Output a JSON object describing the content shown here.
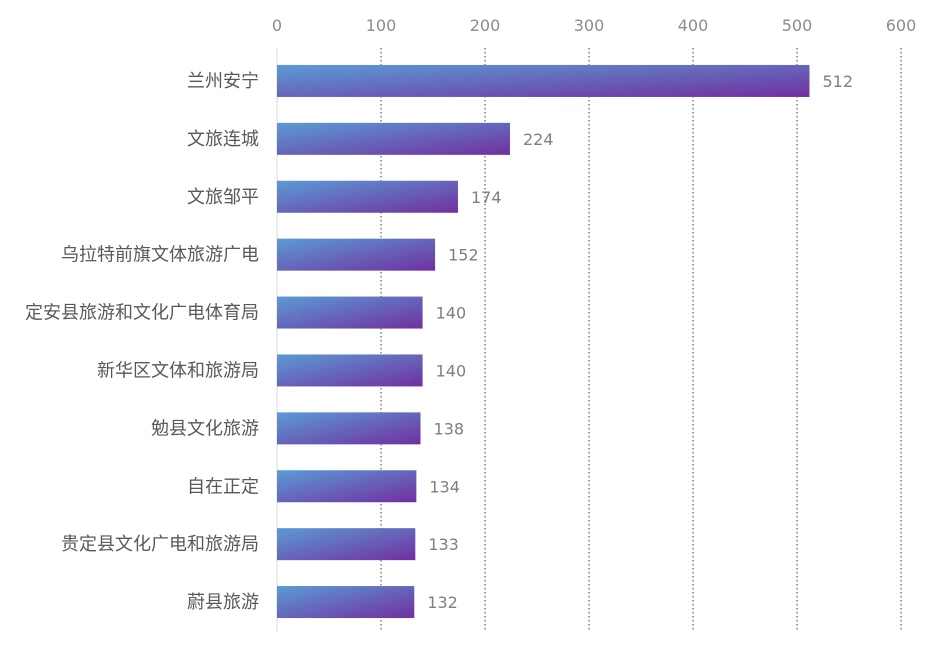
{
  "chart_data": {
    "type": "bar",
    "orientation": "horizontal",
    "title": "",
    "xlabel": "",
    "ylabel": "",
    "xlim": [
      0,
      600
    ],
    "ticks": [
      0,
      100,
      200,
      300,
      400,
      500,
      600
    ],
    "grid": "vertical-dotted",
    "categories": [
      "兰州安宁",
      "文旅连城",
      "文旅邹平",
      "乌拉特前旗文体旅游广电",
      "定安县旅游和文化广电体育局",
      "新华区文体和旅游局",
      "勉县文化旅游",
      "自在正定",
      "贵定县文化广电和旅游局",
      "蔚县旅游"
    ],
    "values": [
      512,
      224,
      174,
      152,
      140,
      140,
      138,
      134,
      133,
      132
    ],
    "colors": {
      "bar_gradient_start": "#5b9bd5",
      "bar_gradient_end": "#7030a0",
      "axis_text": "#8c8c8c",
      "category_text": "#595959",
      "value_text": "#7f7f7f",
      "grid": "#404040",
      "axis_line": "#d9d9d9"
    }
  }
}
